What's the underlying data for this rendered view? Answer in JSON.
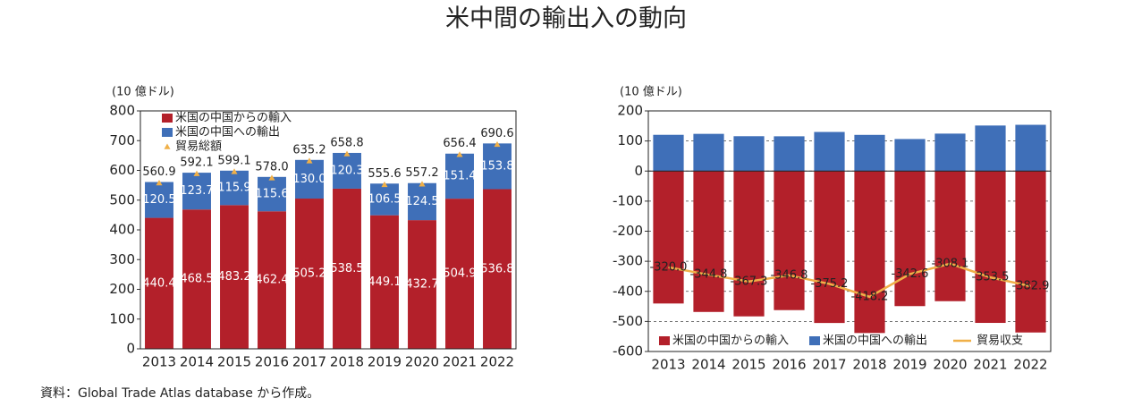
{
  "title": "米中間の輸出入の動向",
  "source": "資料：Global Trade Atlas database から作成。",
  "chart_data": [
    {
      "type": "bar",
      "stacked": true,
      "y_label": "(10 億ドル)",
      "categories": [
        "2013",
        "2014",
        "2015",
        "2016",
        "2017",
        "2018",
        "2019",
        "2020",
        "2021",
        "2022"
      ],
      "ylim": [
        0,
        800
      ],
      "yticks": [
        0,
        100,
        200,
        300,
        400,
        500,
        600,
        700,
        800
      ],
      "grid": false,
      "legend": "upper left",
      "series": [
        {
          "name": "米国の中国からの輸入",
          "kind": "bar",
          "color": "#b3202a",
          "values": [
            440.4,
            468.5,
            483.2,
            462.4,
            505.2,
            538.5,
            449.1,
            432.7,
            504.9,
            536.8
          ],
          "value_labels": [
            "440.4",
            "468.5",
            "483.2",
            "462.4",
            "505.2",
            "538.5",
            "449.1",
            "432.7",
            "504.9",
            "536.8"
          ]
        },
        {
          "name": "米国の中国への輸出",
          "kind": "bar",
          "color": "#3f6fb8",
          "values": [
            120.5,
            123.7,
            115.9,
            115.6,
            130.0,
            120.3,
            106.5,
            124.5,
            151.4,
            153.8
          ],
          "value_labels": [
            "120.5",
            "123.7",
            "115.9",
            "115.6",
            "130.0",
            "120.3",
            "106.5",
            "124.5",
            "151.4",
            "153.8"
          ]
        },
        {
          "name": "貿易総額",
          "kind": "marker",
          "color": "#f0b048",
          "values": [
            560.9,
            592.1,
            599.1,
            578.0,
            635.2,
            658.8,
            555.6,
            557.2,
            656.4,
            690.6
          ],
          "value_labels": [
            "560.9",
            "592.1",
            "599.1",
            "578.0",
            "635.2",
            "658.8",
            "555.6",
            "557.2",
            "656.4",
            "690.6"
          ]
        }
      ]
    },
    {
      "type": "bar",
      "stacked": true,
      "y_label": "(10 億ドル)",
      "categories": [
        "2013",
        "2014",
        "2015",
        "2016",
        "2017",
        "2018",
        "2019",
        "2020",
        "2021",
        "2022"
      ],
      "ylim": [
        -600,
        200
      ],
      "yticks": [
        -600,
        -500,
        -400,
        -300,
        -200,
        -100,
        0,
        100,
        200
      ],
      "grid": true,
      "legend": "lower center",
      "series": [
        {
          "name": "米国の中国からの輸入",
          "kind": "bar",
          "color": "#b3202a",
          "values": [
            -440.4,
            -468.5,
            -483.2,
            -462.4,
            -505.2,
            -538.5,
            -449.1,
            -432.7,
            -504.9,
            -536.8
          ]
        },
        {
          "name": "米国の中国への輸出",
          "kind": "bar",
          "color": "#3f6fb8",
          "values": [
            120.5,
            123.7,
            115.9,
            115.6,
            130.0,
            120.3,
            106.5,
            124.5,
            151.4,
            153.8
          ]
        },
        {
          "name": "貿易収支",
          "kind": "line",
          "color": "#f0b048",
          "values": [
            -320.0,
            -344.8,
            -367.3,
            -346.8,
            -375.2,
            -418.2,
            -342.6,
            -308.1,
            -353.5,
            -382.9
          ],
          "value_labels": [
            "-320.0",
            "-344.8",
            "-367.3",
            "-346.8",
            "-375.2",
            "-418.2",
            "-342.6",
            "-308.1",
            "-353.5",
            "-382.9"
          ]
        }
      ]
    }
  ]
}
